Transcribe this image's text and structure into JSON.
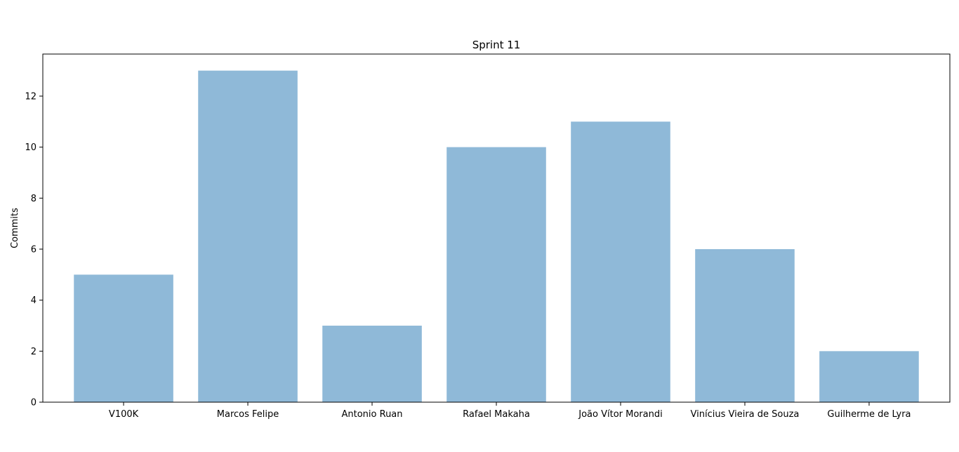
{
  "chart_data": {
    "type": "bar",
    "title": "Sprint 11",
    "xlabel": "",
    "ylabel": "Commits",
    "categories": [
      "V100K",
      "Marcos Felipe",
      "Antonio Ruan",
      "Rafael Makaha",
      "João Vítor Morandi",
      "Vinícius Vieira de Souza",
      "Guilherme de Lyra"
    ],
    "values": [
      5,
      13,
      3,
      10,
      11,
      6,
      2
    ],
    "ylim": [
      0,
      13.65
    ],
    "yticks": [
      0,
      2,
      4,
      6,
      8,
      10,
      12
    ],
    "bar_color": "#8fb9d8",
    "grid": false,
    "legend": "none"
  }
}
